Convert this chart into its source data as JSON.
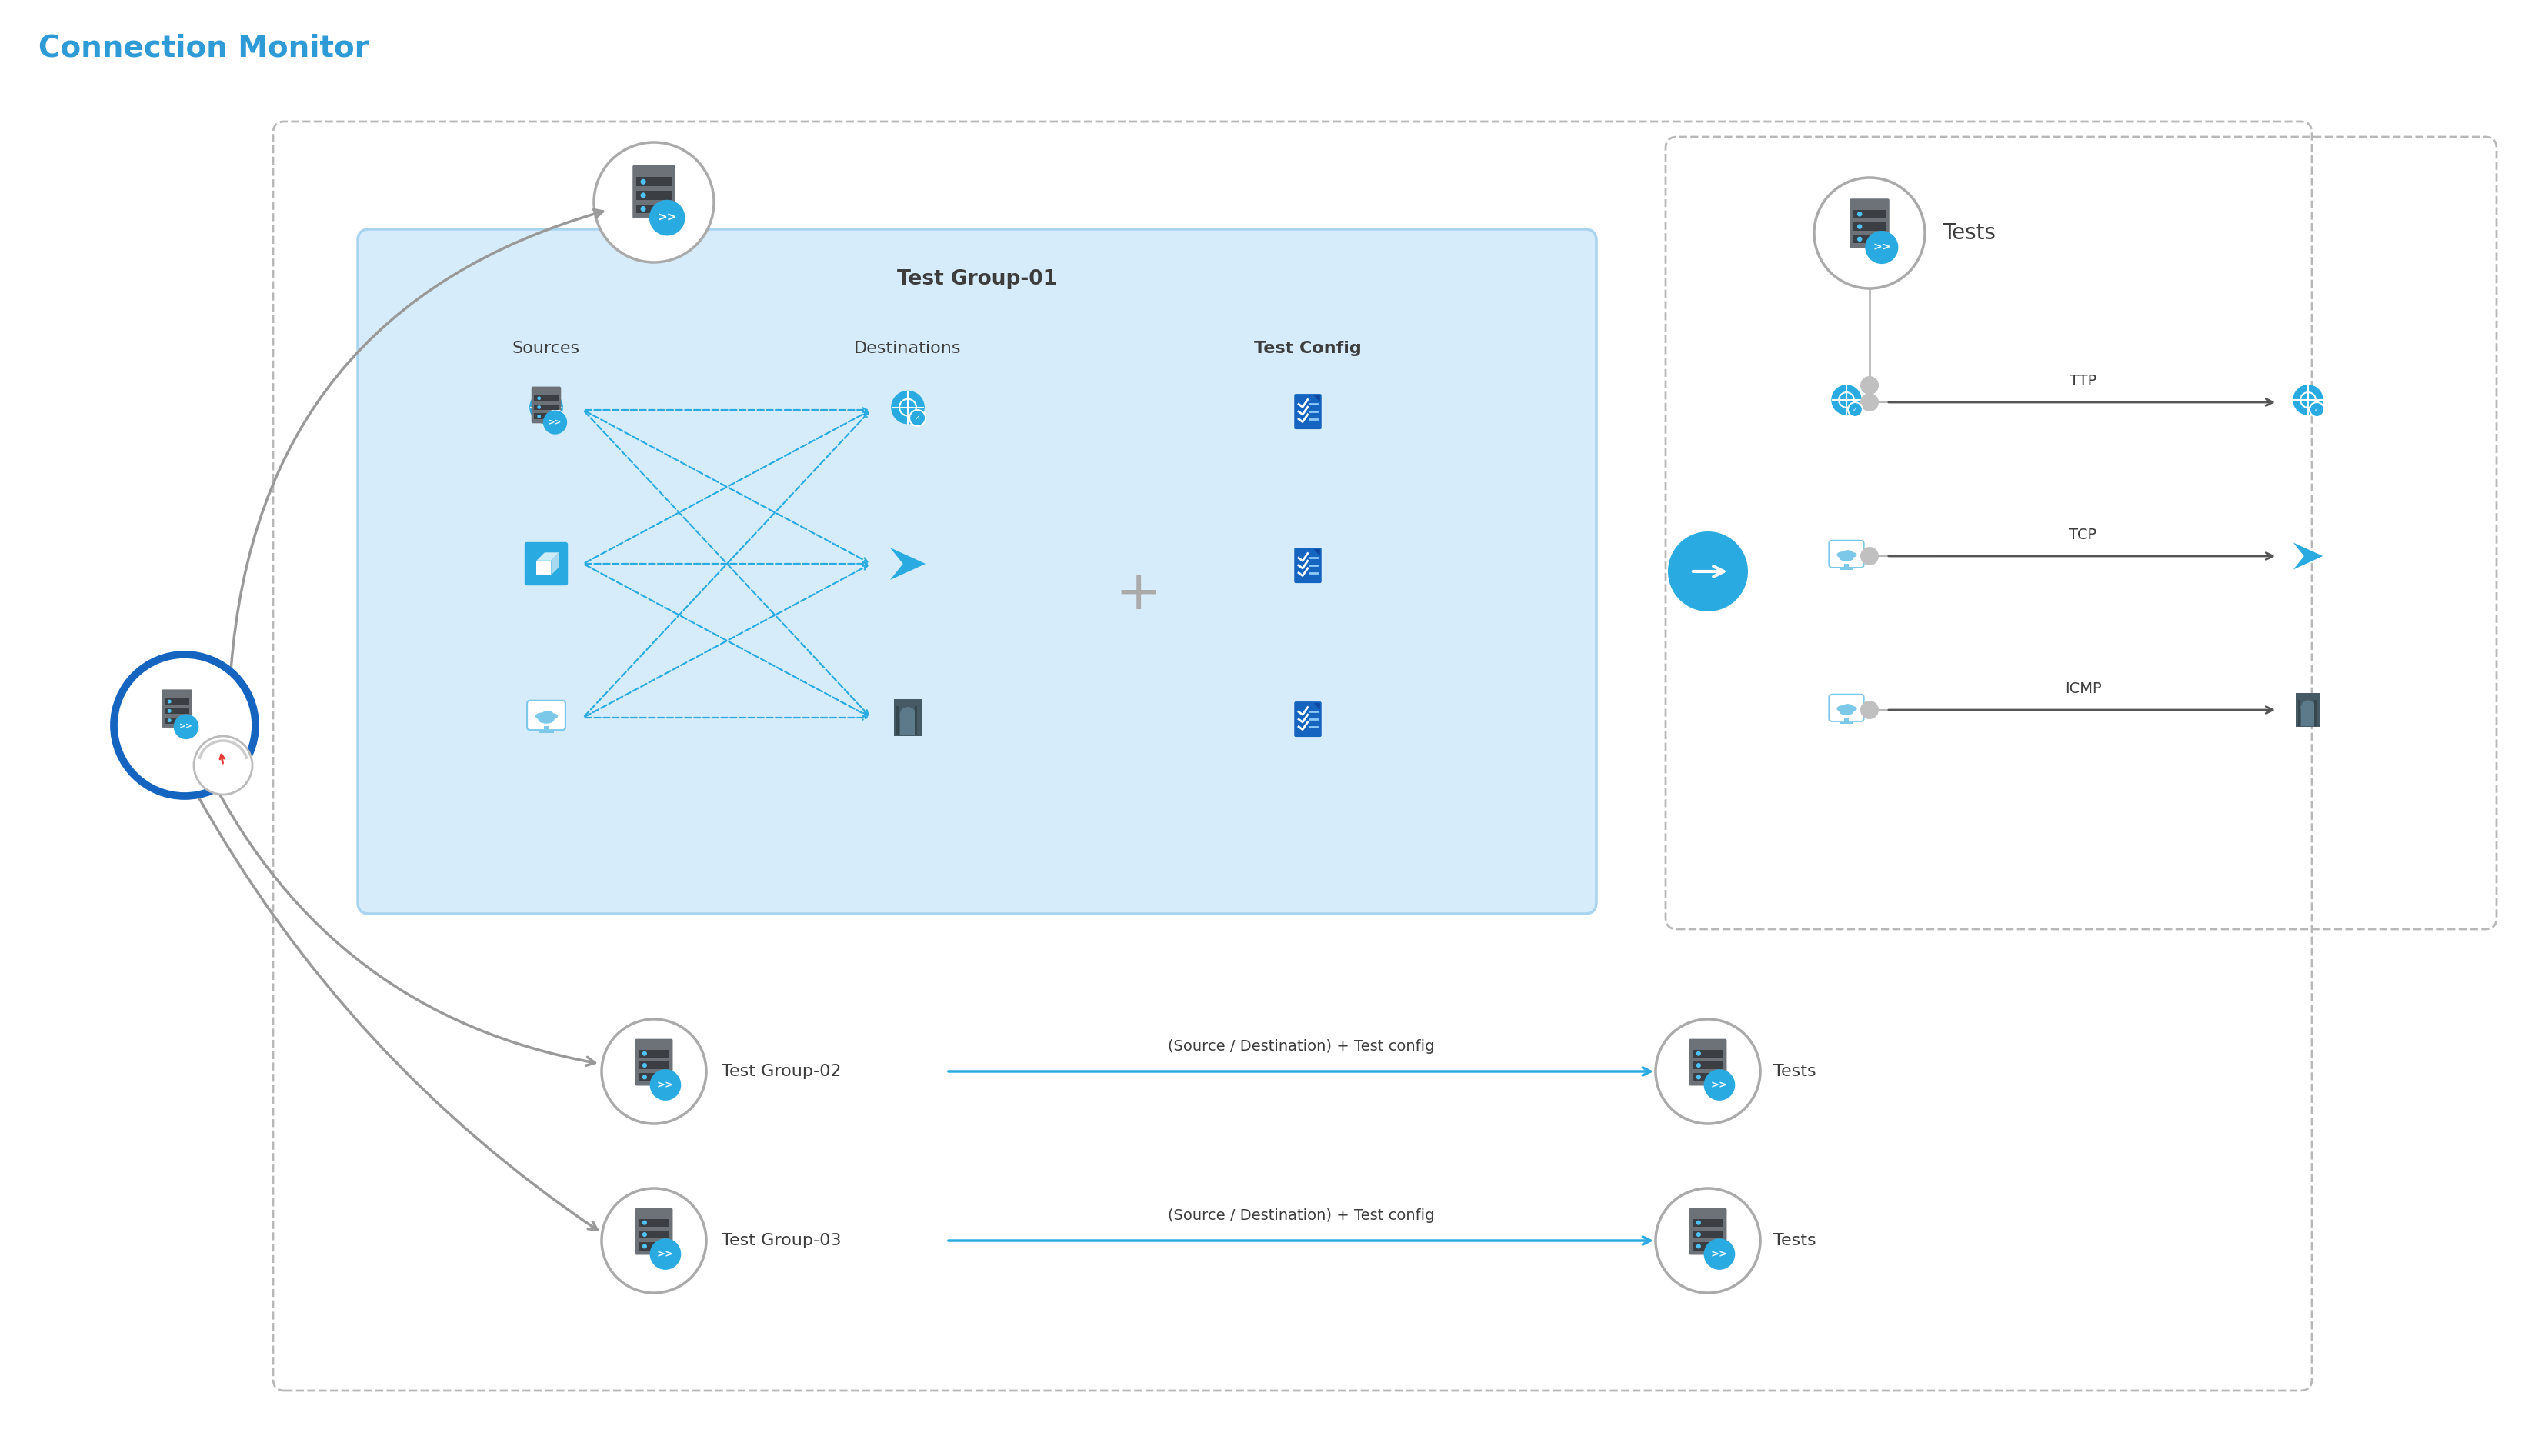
{
  "title": "Connection Monitor",
  "title_color": "#2E9BD6",
  "title_fontsize": 28,
  "bg_color": "#ffffff",
  "fig_width": 32.82,
  "fig_height": 18.93,
  "test_group_01_label": "Test Group-01",
  "test_group_02_label": "Test Group-02",
  "test_group_03_label": "Test Group-03",
  "sources_label": "Sources",
  "destinations_label": "Destinations",
  "test_config_label": "Test Config",
  "tests_label": "Tests",
  "arrow_label_02": "(Source / Destination) + Test config",
  "arrow_label_03": "(Source / Destination) + Test config",
  "ttp_label": "TTP",
  "tcp_label": "TCP",
  "icmp_label": "ICMP",
  "server_gray": "#6D7278",
  "server_dark": "#3B3F44",
  "badge_blue": "#29ABE2",
  "badge_blue2": "#4FC3F7",
  "light_blue_bg": "#D6ECFA",
  "inner_border_blue": "#A8D4F0",
  "dashed_gray": "#B8B8B8",
  "text_dark": "#3D3D3D",
  "text_mid": "#555555",
  "arrow_gray": "#999999",
  "arrow_blue": "#29ABE2",
  "plus_gray": "#AAAAAA",
  "circle_border": "#AAAAAA",
  "bullet_gray": "#C0C0C0",
  "line_gray": "#CCCCCC",
  "outer_border_gray": "#C8C8C8"
}
